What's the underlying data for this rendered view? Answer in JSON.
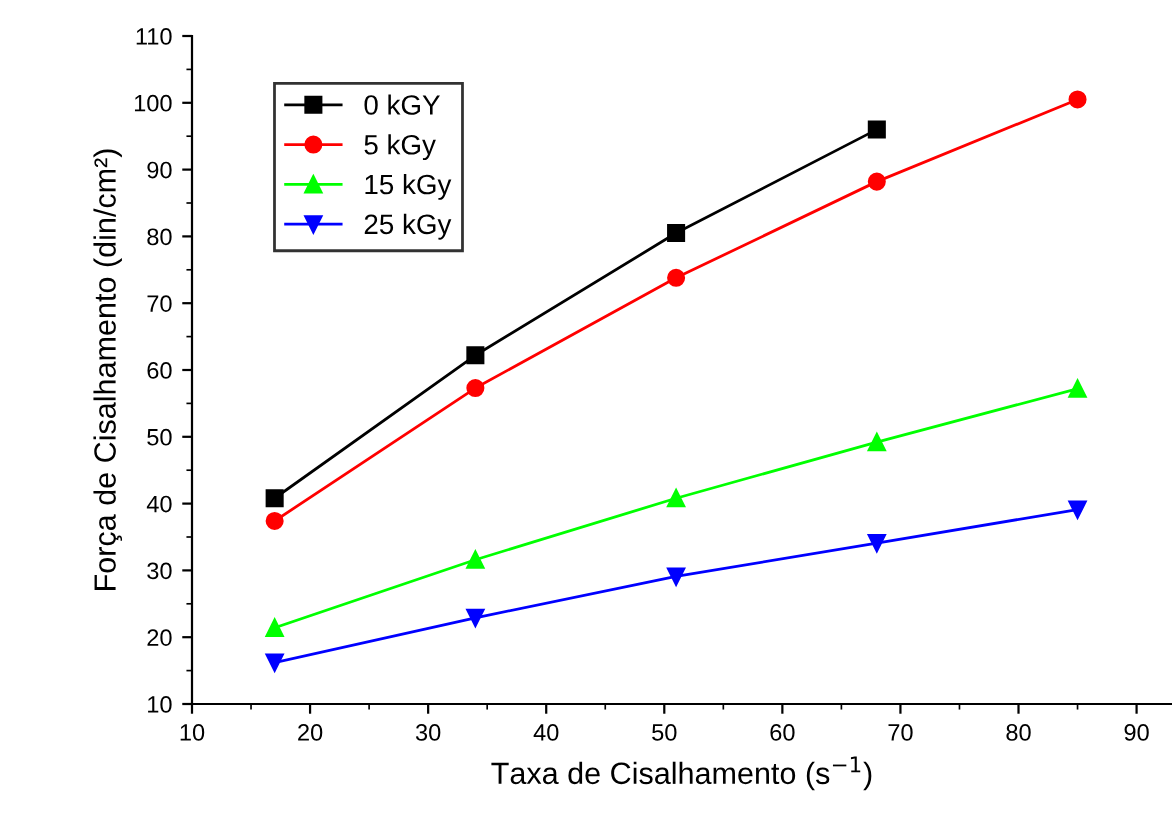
{
  "chart_data": {
    "type": "line",
    "xlabel": "Taxa de Cisalhamento (s$^{−1}$)",
    "ylabel": "Força de Cisalhamento (din/cm²)",
    "x": [
      17,
      34,
      51,
      68,
      85
    ],
    "series": [
      {
        "name": "0 kGY",
        "color": "#000000",
        "marker": "square",
        "values": [
          40.8,
          62.2,
          80.5,
          96.0,
          null
        ]
      },
      {
        "name": "5 kGy",
        "color": "#ff0000",
        "marker": "circle",
        "values": [
          37.4,
          57.3,
          73.8,
          88.2,
          100.5
        ]
      },
      {
        "name": "15 kGy",
        "color": "#00ff00",
        "marker": "triangle",
        "values": [
          21.4,
          31.6,
          40.8,
          49.2,
          57.2
        ]
      },
      {
        "name": "25 kGy",
        "color": "#0000ff",
        "marker": "triangle-down",
        "values": [
          16.2,
          22.9,
          29.1,
          34.1,
          39.1
        ]
      }
    ],
    "xlim": [
      10,
      93
    ],
    "xticks": [
      10,
      20,
      30,
      40,
      50,
      60,
      70,
      80,
      90
    ],
    "ylim": [
      10,
      110
    ],
    "yticks": [
      10,
      20,
      30,
      40,
      50,
      60,
      70,
      80,
      90,
      100,
      110
    ],
    "grid": false,
    "legend": "top left",
    "line_style": "solid"
  }
}
